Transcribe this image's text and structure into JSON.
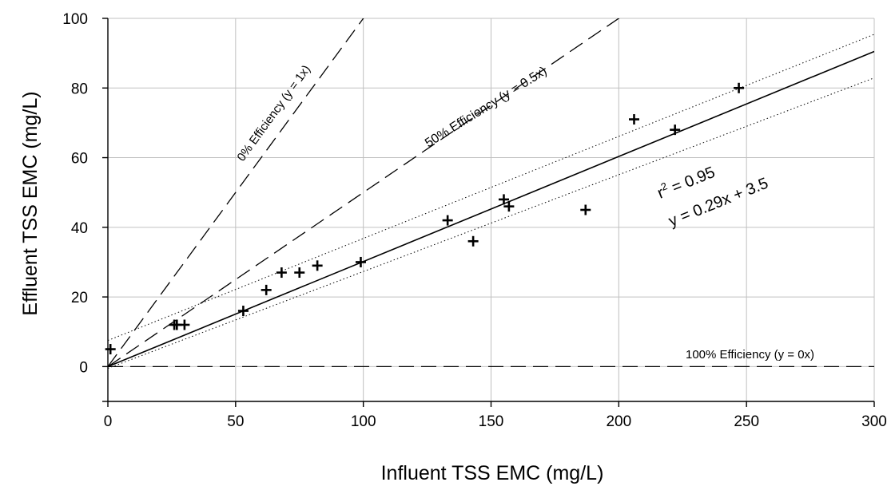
{
  "chart_data": {
    "type": "scatter",
    "xlabel": "Influent TSS EMC (mg/L)",
    "ylabel": "Effluent TSS EMC (mg/L)",
    "xlim": [
      0,
      300
    ],
    "ylim": [
      -10,
      100
    ],
    "xticks": [
      0,
      50,
      100,
      150,
      200,
      250,
      300
    ],
    "yticks": [
      0,
      20,
      40,
      60,
      80,
      100
    ],
    "grid": true,
    "colors": {
      "points": "#000000",
      "grid": "#c0c0c0",
      "lines": "#000000"
    },
    "points": [
      {
        "x": 1,
        "y": 5
      },
      {
        "x": 26,
        "y": 12
      },
      {
        "x": 27,
        "y": 12
      },
      {
        "x": 30,
        "y": 12
      },
      {
        "x": 53,
        "y": 16
      },
      {
        "x": 62,
        "y": 22
      },
      {
        "x": 68,
        "y": 27
      },
      {
        "x": 75,
        "y": 27
      },
      {
        "x": 82,
        "y": 29
      },
      {
        "x": 99,
        "y": 30
      },
      {
        "x": 133,
        "y": 42
      },
      {
        "x": 143,
        "y": 36
      },
      {
        "x": 155,
        "y": 48
      },
      {
        "x": 157,
        "y": 46
      },
      {
        "x": 187,
        "y": 45
      },
      {
        "x": 206,
        "y": 71
      },
      {
        "x": 222,
        "y": 68
      },
      {
        "x": 247,
        "y": 80
      }
    ],
    "regression": {
      "slope": 0.29,
      "intercept": 3.5,
      "label": "y = 0.29x + 3.5",
      "r2_prefix": "r",
      "r2_exp": "2",
      "r2_value": " = 0.95"
    },
    "confidence_band": {
      "upper_intercept": 7.5,
      "lower_intercept": -0.5,
      "slope_upper": 0.293,
      "slope_lower": 0.278
    },
    "reference_lines": [
      {
        "slope": 1,
        "label": "0% Efficiency (y = 1x)"
      },
      {
        "slope": 0.5,
        "label": "50% Efficiency (y = 0.5x)"
      },
      {
        "slope": 0,
        "label": "100% Efficiency (y = 0x)"
      }
    ]
  }
}
